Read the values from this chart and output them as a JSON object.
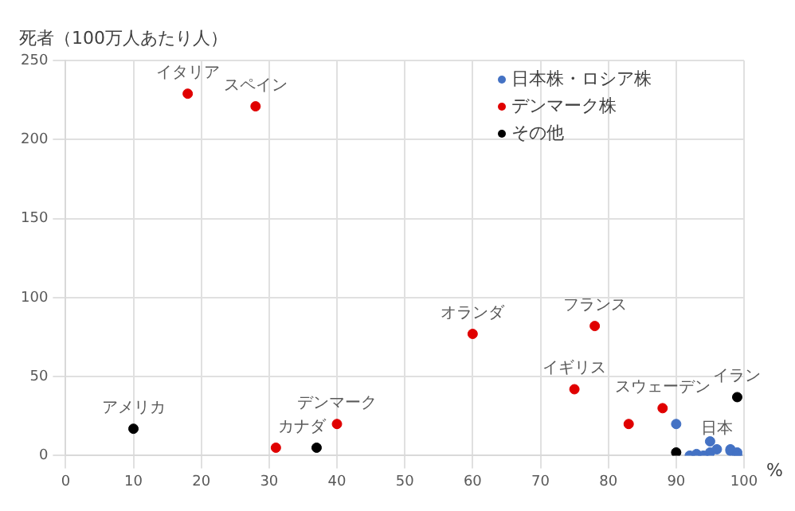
{
  "chart_data": {
    "type": "scatter",
    "ylabel": "死者（100万人あたり人）",
    "xlabel": "%",
    "xlim": [
      0,
      100
    ],
    "xticks": [
      0,
      10,
      20,
      30,
      40,
      50,
      60,
      70,
      80,
      90,
      100
    ],
    "ylim": [
      0,
      250
    ],
    "yticks": [
      0,
      50,
      100,
      150,
      200,
      250
    ],
    "grid": true,
    "legend": "top right",
    "marker": "circle",
    "series": [
      {
        "name": "日本株・ロシア株",
        "color": "#4472c4",
        "x": [
          90,
          92,
          93,
          95,
          95,
          94,
          96,
          98,
          98,
          99,
          99
        ],
        "values": [
          20,
          0,
          1,
          9,
          2,
          0,
          4,
          4,
          3,
          2,
          0
        ]
      },
      {
        "name": "デンマーク株",
        "color": "#e00000",
        "x": [
          18,
          28,
          31,
          40,
          60,
          78,
          75,
          83,
          88
        ],
        "values": [
          229,
          221,
          5,
          20,
          77,
          82,
          42,
          20,
          30
        ]
      },
      {
        "name": "その他",
        "color": "#000000",
        "x": [
          10,
          37,
          90,
          99
        ],
        "values": [
          17,
          5,
          2,
          37
        ]
      }
    ],
    "annotations": [
      {
        "text": "イタリア",
        "x": 18,
        "y": 229
      },
      {
        "text": "スペイン",
        "x": 28,
        "y": 221
      },
      {
        "text": "アメリカ",
        "x": 10,
        "y": 17
      },
      {
        "text": "カナダ",
        "x": 37,
        "y": 5
      },
      {
        "text": "デンマーク",
        "x": 40,
        "y": 20
      },
      {
        "text": "オランダ",
        "x": 60,
        "y": 77
      },
      {
        "text": "フランス",
        "x": 78,
        "y": 82
      },
      {
        "text": "イギリス",
        "x": 75,
        "y": 42
      },
      {
        "text": "スウェーデン",
        "x": 88,
        "y": 30
      },
      {
        "text": "イラン",
        "x": 99,
        "y": 37
      },
      {
        "text": "日本",
        "x": 97,
        "y": 4
      }
    ]
  }
}
